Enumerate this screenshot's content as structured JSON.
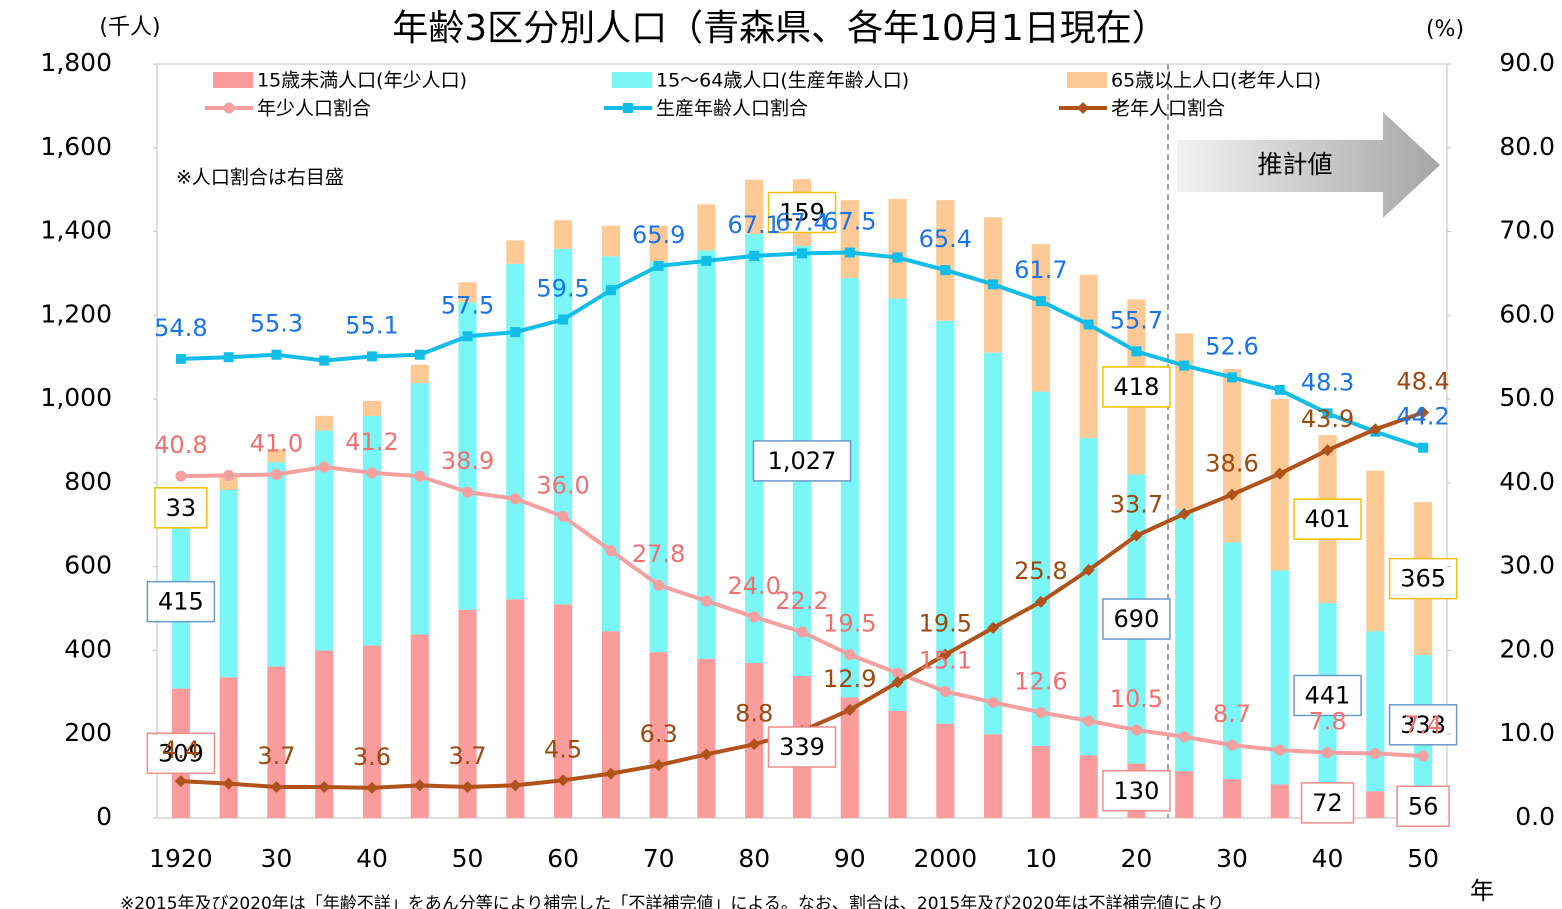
{
  "chart_data": {
    "type": "bar",
    "stacked": true,
    "title": "年齢3区分別人口（青森県、各年10月1日現在）",
    "y_label": "(千人)",
    "y2_label": "(%)",
    "x_label": "年",
    "note": "※人口割合は右目盛",
    "projection_label": "推計値",
    "footnote": "※2015年及び2020年は「年齢不詳」をあん分等により補完した「不詳補完値」による。なお、割合は、2015年及び2020年は不詳補完値により",
    "categories": [
      "1920",
      null,
      "30",
      null,
      "40",
      null,
      "50",
      null,
      "60",
      null,
      "70",
      null,
      "80",
      null,
      "90",
      null,
      "2000",
      null,
      "10",
      null,
      "20",
      null,
      "30",
      null,
      "40",
      null,
      "50"
    ],
    "ylim": [
      0,
      1800
    ],
    "yticks": [
      0,
      200,
      400,
      600,
      800,
      {
        "value": 1000,
        "label": "1,000"
      },
      {
        "value": 1200,
        "label": "1,200"
      },
      {
        "value": 1400,
        "label": "1,400"
      },
      {
        "value": 1600,
        "label": "1,600"
      },
      {
        "value": 1800,
        "label": "1,800"
      }
    ],
    "y2lim": [
      0,
      90
    ],
    "y2ticks": [
      {
        "value": 0,
        "label": "0.0"
      },
      {
        "value": 10,
        "label": "10.0"
      },
      {
        "value": 20,
        "label": "20.0"
      },
      {
        "value": 30,
        "label": "30.0"
      },
      {
        "value": 40,
        "label": "40.0"
      },
      {
        "value": 50,
        "label": "50.0"
      },
      {
        "value": 60,
        "label": "60.0"
      },
      {
        "value": 70,
        "label": "70.0"
      },
      {
        "value": 80,
        "label": "80.0"
      },
      {
        "value": 90,
        "label": "90.0"
      }
    ],
    "series": [
      {
        "name": "15歳未満人口(年少人口)",
        "type": "bar",
        "color": "#fa9c9c",
        "border": "#f08c8c",
        "values": [
          309,
          336,
          362,
          400,
          412,
          438,
          497,
          522,
          510,
          446,
          396,
          380,
          370,
          339,
          288,
          256,
          225,
          200,
          172,
          150,
          130,
          112,
          93,
          80,
          72,
          64,
          56
        ],
        "value_labels": [
          "309",
          null,
          null,
          null,
          null,
          null,
          null,
          null,
          null,
          null,
          null,
          null,
          null,
          "339",
          null,
          null,
          null,
          null,
          null,
          null,
          "130",
          null,
          null,
          null,
          "72",
          null,
          "56"
        ]
      },
      {
        "name": "15～64歳人口(生産年齢人口)",
        "type": "bar",
        "color": "#7af6f6",
        "border": "#6a9ac8",
        "values": [
          415,
          447,
          487,
          525,
          548,
          600,
          734,
          801,
          849,
          895,
          931,
          975,
          1024,
          1027,
          1001,
          984,
          962,
          911,
          846,
          757,
          690,
          625,
          565,
          511,
          441,
          382,
          333
        ],
        "value_labels": [
          "415",
          null,
          null,
          null,
          null,
          null,
          null,
          null,
          null,
          null,
          null,
          null,
          null,
          "1,027",
          null,
          null,
          null,
          null,
          null,
          null,
          "690",
          null,
          null,
          null,
          "441",
          null,
          "333"
        ]
      },
      {
        "name": "65歳以上人口(老年人口)",
        "type": "bar",
        "color": "#fdca96",
        "border": "#f2c000",
        "values": [
          33,
          35,
          32,
          35,
          36,
          44,
          48,
          56,
          68,
          73,
          87,
          110,
          130,
          159,
          186,
          238,
          288,
          323,
          352,
          390,
          418,
          420,
          414,
          409,
          401,
          383,
          365
        ],
        "value_labels": [
          "33",
          null,
          null,
          null,
          null,
          null,
          null,
          null,
          null,
          null,
          null,
          null,
          null,
          "159",
          null,
          null,
          null,
          null,
          null,
          null,
          "418",
          null,
          null,
          null,
          "401",
          null,
          "365"
        ]
      },
      {
        "name": "年少人口割合",
        "type": "line",
        "axis": "y2",
        "marker": "circle",
        "color": "#f4a0a0",
        "label_color": "#f07070",
        "values": [
          40.8,
          40.9,
          41.0,
          41.9,
          41.2,
          40.8,
          38.9,
          38.1,
          36.0,
          31.9,
          27.8,
          25.9,
          24.0,
          22.2,
          19.5,
          17.3,
          15.1,
          13.8,
          12.6,
          11.6,
          10.5,
          9.7,
          8.7,
          8.1,
          7.8,
          7.7,
          7.4
        ],
        "value_labels": [
          "40.8",
          null,
          "41.0",
          null,
          "41.2",
          null,
          "38.9",
          null,
          "36.0",
          null,
          "27.8",
          null,
          "24.0",
          "22.2",
          "19.5",
          null,
          "15.1",
          null,
          "12.6",
          null,
          "10.5",
          null,
          "8.7",
          null,
          "7.8",
          null,
          "7.4"
        ]
      },
      {
        "name": "生産年齢人口割合",
        "type": "line",
        "axis": "y2",
        "marker": "square",
        "color": "#12bde8",
        "label_color": "#1a73e8",
        "values": [
          54.8,
          55.0,
          55.3,
          54.6,
          55.1,
          55.3,
          57.5,
          58.0,
          59.5,
          63.0,
          65.9,
          66.5,
          67.1,
          67.4,
          67.5,
          66.9,
          65.4,
          63.7,
          61.7,
          58.9,
          55.7,
          54.0,
          52.6,
          51.1,
          48.3,
          46.1,
          44.2
        ],
        "value_labels": [
          "54.8",
          null,
          "55.3",
          null,
          "55.1",
          null,
          "57.5",
          null,
          "59.5",
          null,
          "65.9",
          null,
          "67.1",
          "67.4",
          "67.5",
          null,
          "65.4",
          null,
          "61.7",
          null,
          "55.7",
          null,
          "52.6",
          null,
          "48.3",
          null,
          "44.2"
        ]
      },
      {
        "name": "老年人口割合",
        "type": "line",
        "axis": "y2",
        "marker": "diamond",
        "color": "#b0521a",
        "label_color": "#9c4a10",
        "values": [
          4.4,
          4.1,
          3.7,
          3.7,
          3.6,
          3.9,
          3.7,
          3.9,
          4.5,
          5.3,
          6.3,
          7.6,
          8.8,
          10.4,
          12.9,
          16.2,
          19.5,
          22.7,
          25.8,
          29.6,
          33.7,
          36.3,
          38.6,
          41.1,
          43.9,
          46.4,
          48.4
        ],
        "value_labels": [
          "4.4",
          null,
          "3.7",
          null,
          "3.6",
          null,
          "3.7",
          null,
          "4.5",
          null,
          "6.3",
          null,
          "8.8",
          null,
          "12.9",
          null,
          "19.5",
          null,
          "25.8",
          null,
          "33.7",
          null,
          "38.6",
          null,
          "43.9",
          null,
          "48.4"
        ]
      }
    ]
  }
}
